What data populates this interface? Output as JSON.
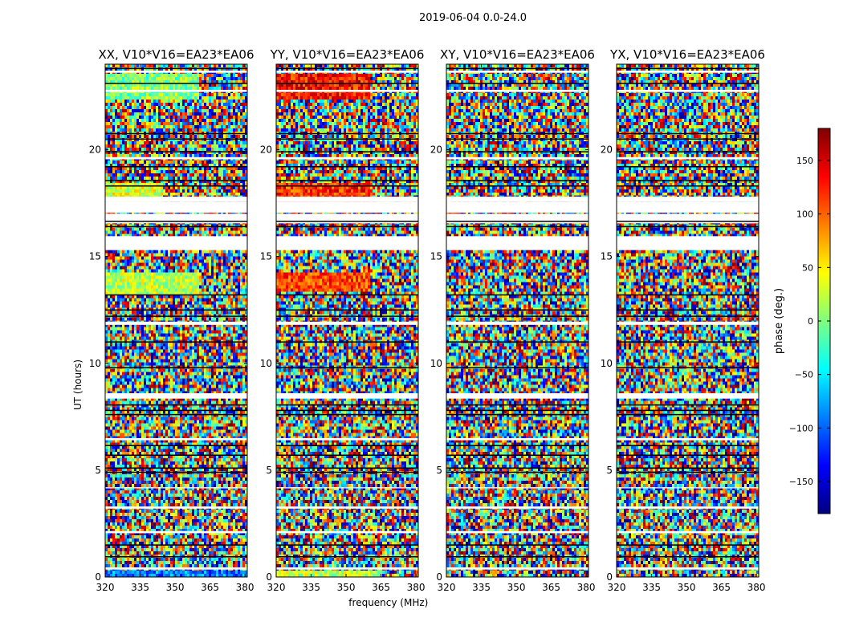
{
  "figure_title": "2019-06-04 0.0-24.0",
  "colorbar": {
    "label": "phase (deg.)",
    "range": [
      -180,
      180
    ],
    "ticks": [
      -150,
      -100,
      -50,
      0,
      50,
      100,
      150
    ],
    "tick_labels": [
      "−150",
      "−100",
      "−50",
      "0",
      "50",
      "100",
      "150"
    ],
    "colormap": "jet",
    "colors": [
      "#00007f",
      "#0000ff",
      "#007fff",
      "#00ffff",
      "#7fff7f",
      "#ffff00",
      "#ff7f00",
      "#ff0000",
      "#7f0000"
    ]
  },
  "chart_data": [
    {
      "type": "heatmap",
      "title": "XX, V10*V16=EA23*EA06",
      "xlabel": "",
      "ylabel": "UT (hours)",
      "xlim": [
        320,
        381
      ],
      "ylim": [
        0,
        24
      ],
      "xticks": [
        320,
        335,
        350,
        365,
        380
      ],
      "yticks": [
        0,
        5,
        10,
        15,
        20
      ],
      "value": "phase (deg.)",
      "coherent_regions": [
        {
          "ut": [
            0.0,
            0.35
          ],
          "freq": [
            320,
            381
          ],
          "phase_deg": -90
        },
        {
          "ut": [
            13.2,
            14.2
          ],
          "freq": [
            320,
            360
          ],
          "phase_deg": 20
        },
        {
          "ut": [
            17.3,
            18.5
          ],
          "freq": [
            320,
            345
          ],
          "phase_deg": 30
        },
        {
          "ut": [
            22.3,
            23.5
          ],
          "freq": [
            320,
            360
          ],
          "phase_deg": 0
        }
      ]
    },
    {
      "type": "heatmap",
      "title": "YY, V10*V16=EA23*EA06",
      "xlabel": "frequency (MHz)",
      "ylabel": "",
      "xlim": [
        320,
        381
      ],
      "ylim": [
        0,
        24
      ],
      "xticks": [
        320,
        335,
        350,
        365,
        380
      ],
      "yticks": [
        0,
        5,
        10,
        15,
        20
      ],
      "value": "phase (deg.)",
      "coherent_regions": [
        {
          "ut": [
            0.0,
            0.35
          ],
          "freq": [
            320,
            365
          ],
          "phase_deg": 20
        },
        {
          "ut": [
            13.3,
            14.3
          ],
          "freq": [
            320,
            360
          ],
          "phase_deg": 110
        },
        {
          "ut": [
            17.3,
            18.5
          ],
          "freq": [
            320,
            360
          ],
          "phase_deg": 120
        },
        {
          "ut": [
            22.3,
            23.5
          ],
          "freq": [
            320,
            360
          ],
          "phase_deg": 130
        }
      ]
    },
    {
      "type": "heatmap",
      "title": "XY, V10*V16=EA23*EA06",
      "xlabel": "",
      "ylabel": "",
      "xlim": [
        320,
        381
      ],
      "ylim": [
        0,
        24
      ],
      "xticks": [
        320,
        335,
        350,
        365,
        380
      ],
      "yticks": [
        0,
        5,
        10,
        15,
        20
      ],
      "value": "phase (deg.)",
      "coherent_regions": []
    },
    {
      "type": "heatmap",
      "title": "YX, V10*V16=EA23*EA06",
      "xlabel": "",
      "ylabel": "",
      "xlim": [
        320,
        381
      ],
      "ylim": [
        0,
        24
      ],
      "xticks": [
        320,
        335,
        350,
        365,
        380
      ],
      "yticks": [
        0,
        5,
        10,
        15,
        20
      ],
      "value": "phase (deg.)",
      "coherent_regions": []
    }
  ],
  "flagged_ut_ranges": [
    [
      0.35,
      0.45
    ],
    [
      2.05,
      2.15
    ],
    [
      3.2,
      3.3
    ],
    [
      4.15,
      4.2
    ],
    [
      6.4,
      6.5
    ],
    [
      8.35,
      8.6
    ],
    [
      11.8,
      11.95
    ],
    [
      15.3,
      15.95
    ],
    [
      16.55,
      17.0
    ],
    [
      17.05,
      17.55
    ],
    [
      17.55,
      17.8
    ],
    [
      19.55,
      19.65
    ],
    [
      22.7,
      22.8
    ],
    [
      23.6,
      23.7
    ]
  ],
  "dark_ut_lines": [
    0.95,
    1.5,
    4.9,
    5.1,
    5.7,
    6.15,
    7.6,
    7.8,
    8.05,
    9.8,
    11.0,
    12.2,
    12.5,
    13.2,
    16.4,
    16.65,
    18.3,
    18.55,
    19.2,
    19.9,
    20.5,
    20.75,
    23.1,
    23.8
  ]
}
